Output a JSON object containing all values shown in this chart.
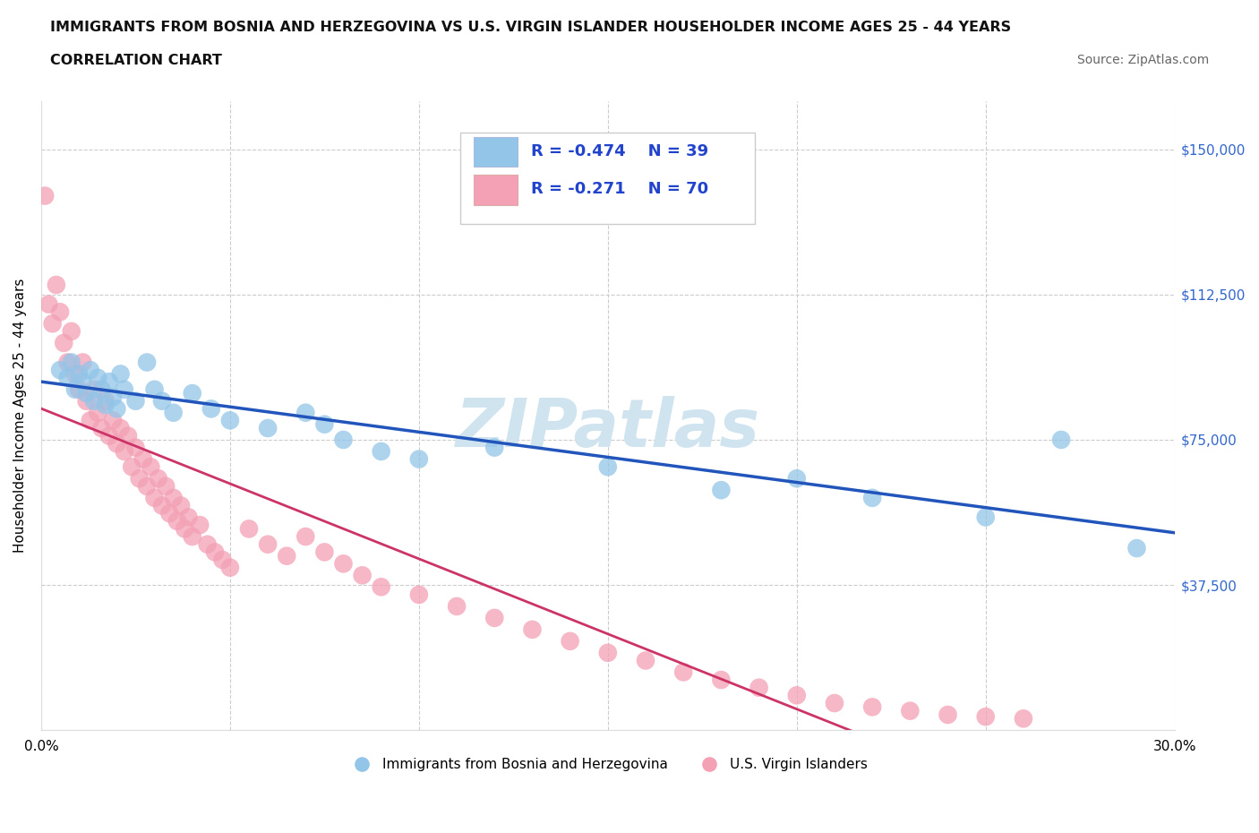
{
  "title_line1": "IMMIGRANTS FROM BOSNIA AND HERZEGOVINA VS U.S. VIRGIN ISLANDER HOUSEHOLDER INCOME AGES 25 - 44 YEARS",
  "title_line2": "CORRELATION CHART",
  "source_text": "Source: ZipAtlas.com",
  "ylabel": "Householder Income Ages 25 - 44 years",
  "xlim": [
    0.0,
    0.3
  ],
  "ylim": [
    0,
    162500
  ],
  "xticks": [
    0.0,
    0.05,
    0.1,
    0.15,
    0.2,
    0.25,
    0.3
  ],
  "ytick_positions": [
    0,
    37500,
    75000,
    112500,
    150000
  ],
  "blue_color": "#92C5E8",
  "pink_color": "#F4A0B5",
  "blue_line_color": "#2255BB",
  "pink_line_color": "#CC3366",
  "watermark_color": "#D0E4F0",
  "watermark_text": "ZIPatlas",
  "legend_R_blue": "R = -0.474",
  "legend_N_blue": "N = 39",
  "legend_R_pink": "R = -0.271",
  "legend_N_pink": "N = 70",
  "legend_label_blue": "Immigrants from Bosnia and Herzegovina",
  "legend_label_pink": "U.S. Virgin Islanders",
  "blue_x": [
    0.005,
    0.007,
    0.008,
    0.009,
    0.01,
    0.011,
    0.012,
    0.013,
    0.014,
    0.015,
    0.016,
    0.017,
    0.018,
    0.019,
    0.02,
    0.021,
    0.022,
    0.025,
    0.028,
    0.03,
    0.032,
    0.035,
    0.04,
    0.045,
    0.05,
    0.06,
    0.07,
    0.075,
    0.08,
    0.09,
    0.1,
    0.12,
    0.15,
    0.18,
    0.2,
    0.22,
    0.25,
    0.27,
    0.29
  ],
  "blue_y": [
    93000,
    91000,
    95000,
    88000,
    92000,
    90000,
    87000,
    93000,
    85000,
    91000,
    88000,
    84000,
    90000,
    86000,
    83000,
    92000,
    88000,
    85000,
    95000,
    88000,
    85000,
    82000,
    87000,
    83000,
    80000,
    78000,
    82000,
    79000,
    75000,
    72000,
    70000,
    73000,
    68000,
    62000,
    65000,
    60000,
    55000,
    75000,
    47000
  ],
  "pink_x": [
    0.001,
    0.002,
    0.003,
    0.004,
    0.005,
    0.006,
    0.007,
    0.008,
    0.009,
    0.01,
    0.011,
    0.012,
    0.013,
    0.014,
    0.015,
    0.016,
    0.017,
    0.018,
    0.019,
    0.02,
    0.021,
    0.022,
    0.023,
    0.024,
    0.025,
    0.026,
    0.027,
    0.028,
    0.029,
    0.03,
    0.031,
    0.032,
    0.033,
    0.034,
    0.035,
    0.036,
    0.037,
    0.038,
    0.039,
    0.04,
    0.042,
    0.044,
    0.046,
    0.048,
    0.05,
    0.055,
    0.06,
    0.065,
    0.07,
    0.075,
    0.08,
    0.085,
    0.09,
    0.1,
    0.11,
    0.12,
    0.13,
    0.14,
    0.15,
    0.16,
    0.17,
    0.18,
    0.19,
    0.2,
    0.21,
    0.22,
    0.23,
    0.24,
    0.25,
    0.26
  ],
  "pink_y": [
    138000,
    110000,
    105000,
    115000,
    108000,
    100000,
    95000,
    103000,
    92000,
    88000,
    95000,
    85000,
    80000,
    88000,
    82000,
    78000,
    85000,
    76000,
    80000,
    74000,
    78000,
    72000,
    76000,
    68000,
    73000,
    65000,
    70000,
    63000,
    68000,
    60000,
    65000,
    58000,
    63000,
    56000,
    60000,
    54000,
    58000,
    52000,
    55000,
    50000,
    53000,
    48000,
    46000,
    44000,
    42000,
    52000,
    48000,
    45000,
    50000,
    46000,
    43000,
    40000,
    37000,
    35000,
    32000,
    29000,
    26000,
    23000,
    20000,
    18000,
    15000,
    13000,
    11000,
    9000,
    7000,
    6000,
    5000,
    4000,
    3500,
    3000
  ]
}
